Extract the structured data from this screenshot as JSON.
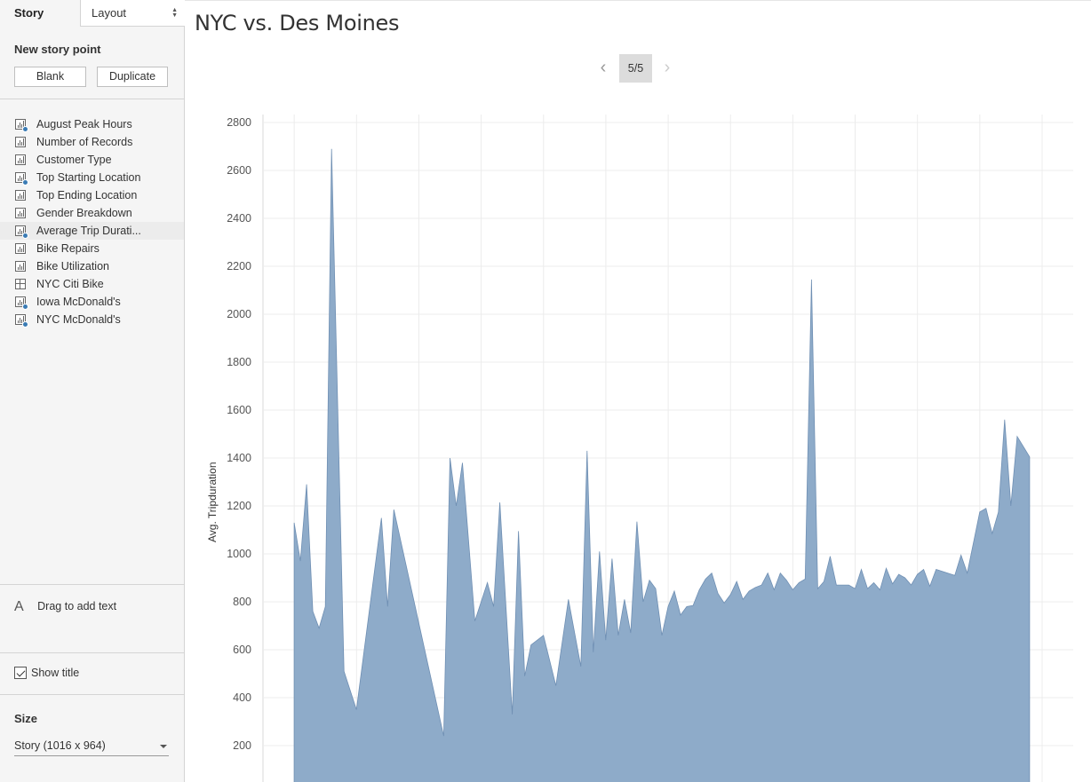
{
  "sidebar": {
    "tabs": {
      "story": "Story",
      "layout": "Layout"
    },
    "new_story_point": "New story point",
    "blank_button": "Blank",
    "duplicate_button": "Duplicate",
    "sheets": [
      {
        "label": "August Peak Hours",
        "icon": "bar-chart-check-icon"
      },
      {
        "label": "Number of Records",
        "icon": "bar-chart-icon"
      },
      {
        "label": "Customer Type",
        "icon": "bar-chart-icon"
      },
      {
        "label": "Top Starting Location",
        "icon": "bar-chart-check-icon"
      },
      {
        "label": "Top Ending Location",
        "icon": "bar-chart-icon"
      },
      {
        "label": "Gender Breakdown",
        "icon": "bar-chart-icon"
      },
      {
        "label": "Average Trip Durati...",
        "icon": "bar-chart-check-icon",
        "selected": true
      },
      {
        "label": "Bike Repairs",
        "icon": "bar-chart-icon"
      },
      {
        "label": "Bike Utilization",
        "icon": "bar-chart-icon"
      },
      {
        "label": "NYC Citi Bike",
        "icon": "dashboard-grid-icon"
      },
      {
        "label": "Iowa McDonald's",
        "icon": "bar-chart-check-icon"
      },
      {
        "label": "NYC McDonald's",
        "icon": "bar-chart-check-icon"
      }
    ],
    "drag_to_add_text": "Drag to add text",
    "show_title": "Show title",
    "show_title_checked": true,
    "size_label": "Size",
    "size_value": "Story (1016 x 964)"
  },
  "main": {
    "story_title": "NYC vs. Des Moines",
    "story_point_counter": "5/5"
  },
  "colors": {
    "area_fill": "#8eabc9",
    "area_stroke": "#6f8fb3",
    "gridline": "#ececec",
    "check_badge": "#3a7bb4"
  },
  "chart_data": {
    "type": "area",
    "ylabel": "Avg. Tripduration",
    "ylim": [
      0,
      2800
    ],
    "yticks": [
      200,
      400,
      600,
      800,
      1000,
      1200,
      1400,
      1600,
      1800,
      2000,
      2200,
      2400,
      2600,
      2800
    ],
    "grid": true,
    "xlim": [
      0,
      130
    ],
    "points": [
      [
        5,
        1130
      ],
      [
        6,
        970
      ],
      [
        7,
        1290
      ],
      [
        8,
        760
      ],
      [
        9,
        690
      ],
      [
        10,
        780
      ],
      [
        11,
        2690
      ],
      [
        13,
        510
      ],
      [
        15,
        350
      ],
      [
        19,
        1150
      ],
      [
        20,
        780
      ],
      [
        21,
        1185
      ],
      [
        29,
        240
      ],
      [
        30,
        1400
      ],
      [
        31,
        1200
      ],
      [
        32,
        1380
      ],
      [
        34,
        720
      ],
      [
        36,
        880
      ],
      [
        37,
        780
      ],
      [
        38,
        1215
      ],
      [
        40,
        330
      ],
      [
        41,
        1095
      ],
      [
        42,
        490
      ],
      [
        43,
        620
      ],
      [
        45,
        660
      ],
      [
        47,
        450
      ],
      [
        49,
        810
      ],
      [
        51,
        530
      ],
      [
        52,
        1430
      ],
      [
        53,
        590
      ],
      [
        54,
        1010
      ],
      [
        55,
        640
      ],
      [
        56,
        980
      ],
      [
        57,
        660
      ],
      [
        58,
        810
      ],
      [
        59,
        670
      ],
      [
        60,
        1135
      ],
      [
        61,
        800
      ],
      [
        62,
        890
      ],
      [
        63,
        855
      ],
      [
        64,
        660
      ],
      [
        65,
        780
      ],
      [
        66,
        845
      ],
      [
        67,
        745
      ],
      [
        68,
        780
      ],
      [
        69,
        785
      ],
      [
        70,
        850
      ],
      [
        71,
        895
      ],
      [
        72,
        920
      ],
      [
        73,
        835
      ],
      [
        74,
        795
      ],
      [
        75,
        830
      ],
      [
        76,
        885
      ],
      [
        77,
        810
      ],
      [
        78,
        845
      ],
      [
        79,
        860
      ],
      [
        80,
        870
      ],
      [
        81,
        920
      ],
      [
        82,
        850
      ],
      [
        83,
        920
      ],
      [
        84,
        890
      ],
      [
        85,
        850
      ],
      [
        86,
        880
      ],
      [
        87,
        895
      ],
      [
        88,
        2145
      ],
      [
        89,
        855
      ],
      [
        90,
        885
      ],
      [
        91,
        990
      ],
      [
        92,
        870
      ],
      [
        94,
        870
      ],
      [
        95,
        855
      ],
      [
        96,
        935
      ],
      [
        97,
        855
      ],
      [
        98,
        880
      ],
      [
        99,
        850
      ],
      [
        100,
        940
      ],
      [
        101,
        875
      ],
      [
        102,
        915
      ],
      [
        103,
        900
      ],
      [
        104,
        870
      ],
      [
        105,
        915
      ],
      [
        106,
        935
      ],
      [
        107,
        865
      ],
      [
        108,
        935
      ],
      [
        111,
        910
      ],
      [
        112,
        995
      ],
      [
        113,
        920
      ],
      [
        115,
        1175
      ],
      [
        116,
        1190
      ],
      [
        117,
        1085
      ],
      [
        118,
        1175
      ],
      [
        119,
        1560
      ],
      [
        120,
        1200
      ],
      [
        121,
        1490
      ],
      [
        123,
        1405
      ]
    ]
  }
}
